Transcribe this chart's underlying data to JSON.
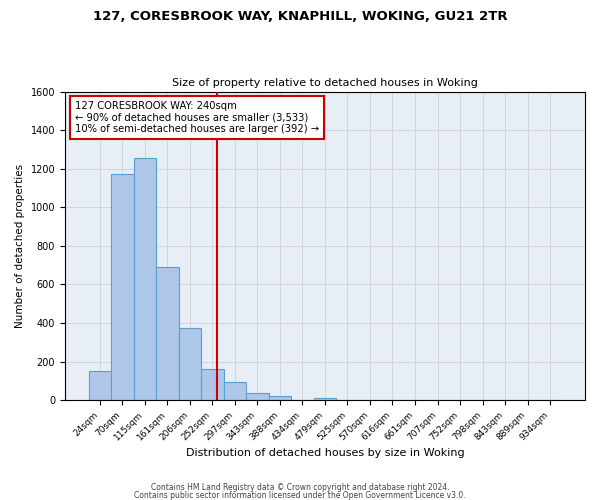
{
  "title_line1": "127, CORESBROOK WAY, KNAPHILL, WOKING, GU21 2TR",
  "title_line2": "Size of property relative to detached houses in Woking",
  "xlabel": "Distribution of detached houses by size in Woking",
  "ylabel": "Number of detached properties",
  "bin_labels": [
    "24sqm",
    "70sqm",
    "115sqm",
    "161sqm",
    "206sqm",
    "252sqm",
    "297sqm",
    "343sqm",
    "388sqm",
    "434sqm",
    "479sqm",
    "525sqm",
    "570sqm",
    "616sqm",
    "661sqm",
    "707sqm",
    "752sqm",
    "798sqm",
    "843sqm",
    "889sqm",
    "934sqm"
  ],
  "bar_values": [
    152,
    1170,
    1255,
    688,
    375,
    160,
    93,
    38,
    22,
    0,
    10,
    0,
    0,
    0,
    0,
    0,
    0,
    0,
    0,
    0,
    0
  ],
  "bar_color": "#aec6e8",
  "bar_edgecolor": "#5a9fd4",
  "vline_x": 5.22,
  "vline_color": "#cc0000",
  "ylim": [
    0,
    1600
  ],
  "yticks": [
    0,
    200,
    400,
    600,
    800,
    1000,
    1200,
    1400,
    1600
  ],
  "grid_color": "#cccccc",
  "bg_color": "#e8eef5",
  "annotation_line1": "127 CORESBROOK WAY: 240sqm",
  "annotation_line2": "← 90% of detached houses are smaller (3,533)",
  "annotation_line3": "10% of semi-detached houses are larger (392) →",
  "annotation_box_edgecolor": "#cc0000",
  "footer_line1": "Contains HM Land Registry data © Crown copyright and database right 2024.",
  "footer_line2": "Contains public sector information licensed under the Open Government Licence v3.0."
}
